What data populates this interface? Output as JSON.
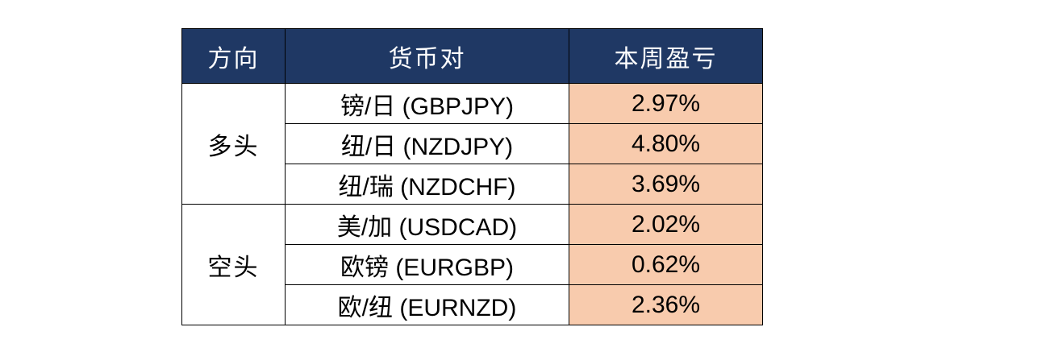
{
  "table": {
    "header": [
      "方向",
      "货币对",
      "本周盈亏"
    ],
    "groups": [
      {
        "direction": "多头",
        "rows": [
          {
            "pair": "镑/日 (GBPJPY)",
            "pnl": "2.97%"
          },
          {
            "pair": "纽/日 (NZDJPY)",
            "pnl": "4.80%"
          },
          {
            "pair": "纽/瑞 (NZDCHF)",
            "pnl": "3.69%"
          }
        ]
      },
      {
        "direction": "空头",
        "rows": [
          {
            "pair": "美/加 (USDCAD)",
            "pnl": "2.02%"
          },
          {
            "pair": "欧镑 (EURGBP)",
            "pnl": "0.62%"
          },
          {
            "pair": "欧/纽 (EURNZD)",
            "pnl": "2.36%"
          }
        ]
      }
    ]
  }
}
